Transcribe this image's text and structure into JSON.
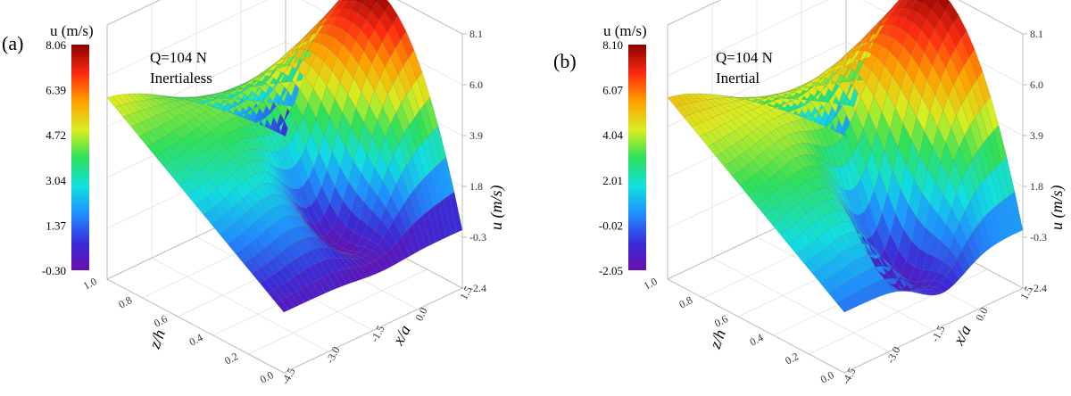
{
  "chart_data": [
    {
      "type": "surface",
      "panel": "(a)",
      "colorbar_label": "u (m/s)",
      "colorbar_ticks": [
        "8.06",
        "6.39",
        "4.72",
        "3.04",
        "1.37",
        "-0.30"
      ],
      "colorbar_range": [
        -0.3,
        8.06
      ],
      "annotation_q": "Q=104 N",
      "annotation_case": "Inertialess",
      "zlabel": "u (m/s)",
      "zticks": [
        "8.1",
        "6.0",
        "3.9",
        "1.8",
        "-0.3",
        "-2.4"
      ],
      "zlim": [
        -2.4,
        8.1
      ],
      "ylabel": "z/h",
      "yticks": [
        "1.0",
        "0.8",
        "0.6",
        "0.4",
        "0.2",
        "0.0"
      ],
      "xlabel": "x/a",
      "xticks": [
        "1.5",
        "0.0",
        "-1.5",
        "-3.0",
        "-4.5"
      ],
      "xlim": [
        -4.5,
        1.5
      ],
      "ylim": [
        0.0,
        1.0
      ],
      "surface": {
        "inlet_profile_max_u": 5.1,
        "outlet_profile_max_u": 8.06,
        "minimum_u": -0.3,
        "minimum_at": {
          "x": -1.2,
          "z": 0.25
        }
      }
    },
    {
      "type": "surface",
      "panel": "(b)",
      "colorbar_label": "u (m/s)",
      "colorbar_ticks": [
        "8.10",
        "6.07",
        "4.04",
        "2.01",
        "-0.02",
        "-2.05"
      ],
      "colorbar_range": [
        -2.05,
        8.1
      ],
      "annotation_q": "Q=104 N",
      "annotation_case": "Inertial",
      "zlabel": "u (m/s)",
      "zticks": [
        "8.1",
        "6.0",
        "3.9",
        "1.8",
        "-0.3",
        "-2.4"
      ],
      "zlim": [
        -2.4,
        8.1
      ],
      "ylabel": "z/h",
      "yticks": [
        "1.0",
        "0.8",
        "0.6",
        "0.4",
        "0.2",
        "0.0"
      ],
      "xlabel": "x/a",
      "xticks": [
        "1.5",
        "0.0",
        "-1.5",
        "-3.0",
        "-4.5"
      ],
      "xlim": [
        -4.5,
        1.5
      ],
      "ylim": [
        0.0,
        1.0
      ],
      "surface": {
        "inlet_profile_max_u": 5.1,
        "outlet_profile_max_u": 8.1,
        "minimum_u": -2.05,
        "minimum_at": {
          "x": -1.2,
          "z": 0.25
        }
      }
    }
  ]
}
